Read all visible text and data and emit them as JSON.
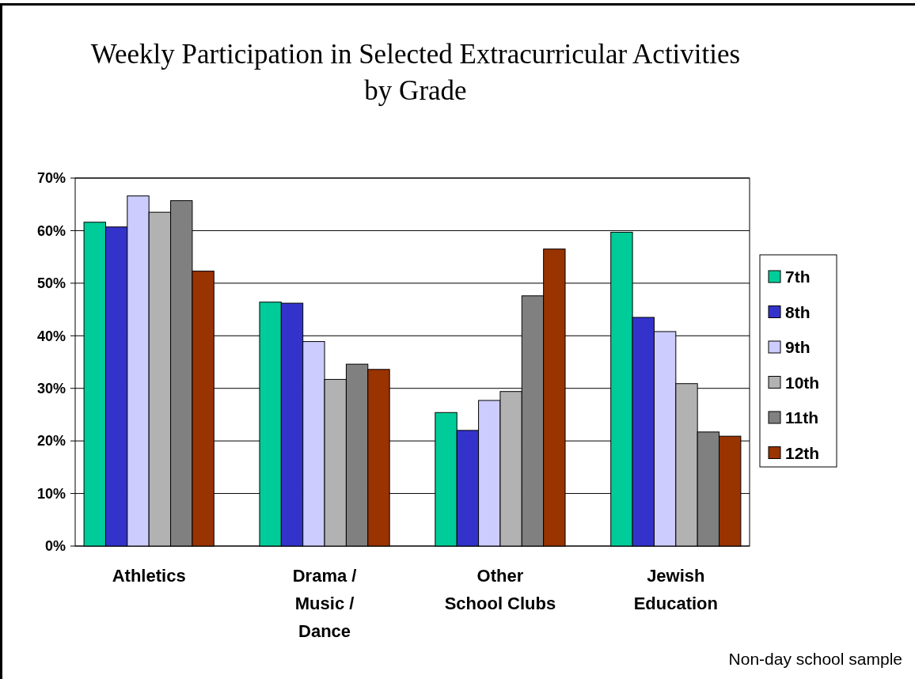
{
  "chart_data": {
    "type": "bar",
    "title": "Weekly Participation in Selected Extracurricular Activities\nby Grade",
    "categories": [
      "Athletics",
      "Drama /\nMusic /\nDance",
      "Other\nSchool Clubs",
      "Jewish\nEducation"
    ],
    "series": [
      {
        "name": "7th",
        "color": "#00cc99",
        "values": [
          61.6,
          46.4,
          25.4,
          59.7
        ]
      },
      {
        "name": "8th",
        "color": "#3333cc",
        "values": [
          60.7,
          46.2,
          22.0,
          43.5
        ]
      },
      {
        "name": "9th",
        "color": "#ccccff",
        "values": [
          66.6,
          38.9,
          27.7,
          40.8
        ]
      },
      {
        "name": "10th",
        "color": "#b2b2b2",
        "values": [
          63.5,
          31.7,
          29.4,
          30.9
        ]
      },
      {
        "name": "11th",
        "color": "#808080",
        "values": [
          65.7,
          34.6,
          47.6,
          21.7
        ]
      },
      {
        "name": "12th",
        "color": "#993300",
        "values": [
          52.3,
          33.6,
          56.5,
          20.9
        ]
      }
    ],
    "ylim": [
      0,
      70
    ],
    "yticks": [
      {
        "value": 0,
        "label": "0%"
      },
      {
        "value": 10,
        "label": "10%"
      },
      {
        "value": 20,
        "label": "20%"
      },
      {
        "value": 30,
        "label": "30%"
      },
      {
        "value": 40,
        "label": "40%"
      },
      {
        "value": 50,
        "label": "50%"
      },
      {
        "value": 60,
        "label": "60%"
      },
      {
        "value": 70,
        "label": "70%"
      }
    ],
    "grid": "y",
    "legend": "right",
    "annotations": [
      "Non-day school sample"
    ]
  }
}
